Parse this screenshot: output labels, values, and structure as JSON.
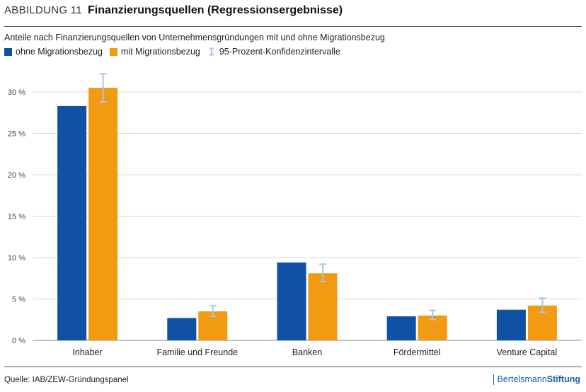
{
  "header": {
    "figure_label": "ABBILDUNG 11",
    "title": "Finanzierungsquellen (Regressionsergebnisse)"
  },
  "subtitle": "Anteile nach Finanzierungsquellen von Unternehmensgründungen mit und ohne Migrationsbezug",
  "legend": {
    "series1": "ohne Migrationsbezug",
    "series2": "mit Migrationsbezug",
    "ci": "95-Prozent-Konfidenzintervalle"
  },
  "colors": {
    "series1": "#0f52a5",
    "series2": "#f29a11",
    "ci": "#a7c6ea",
    "grid": "#d9d9d9"
  },
  "chart_data": {
    "type": "bar",
    "categories": [
      "Inhaber",
      "Familie und Freunde",
      "Banken",
      "Fördermittel",
      "Venture Capital"
    ],
    "series": [
      {
        "name": "ohne Migrationsbezug",
        "values": [
          28.3,
          2.7,
          9.4,
          2.9,
          3.7
        ]
      },
      {
        "name": "mit Migrationsbezug",
        "values": [
          30.5,
          3.5,
          8.1,
          3.0,
          4.2
        ],
        "ci_low": [
          28.8,
          2.9,
          7.1,
          2.5,
          3.4
        ],
        "ci_high": [
          32.2,
          4.2,
          9.2,
          3.6,
          5.1
        ]
      }
    ],
    "yticks": [
      "0 %",
      "5 %",
      "10 %",
      "15 %",
      "20 %",
      "25 %",
      "30 %"
    ],
    "ylim": [
      0,
      30
    ],
    "grid": true,
    "legend_position": "top-left"
  },
  "footer": {
    "source": "Quelle: IAB/ZEW-Gründungspanel",
    "brand_part1": "Bertelsmann",
    "brand_part2": "Stiftung"
  }
}
